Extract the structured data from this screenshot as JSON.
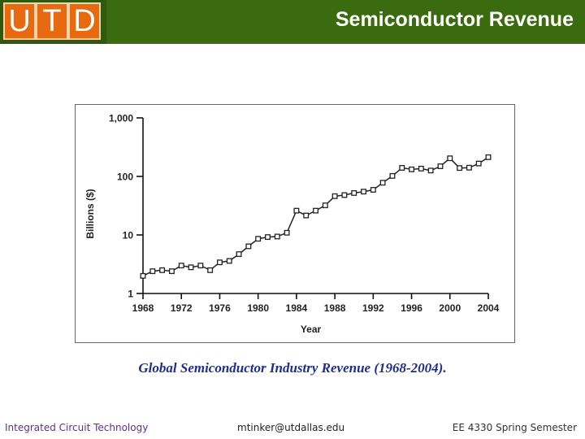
{
  "header": {
    "logo_letters": [
      "U",
      "T",
      "D"
    ],
    "title": "Semiconductor Revenue",
    "colors": {
      "bar": "#3a6b0e",
      "logo": "#e86a10"
    }
  },
  "chart_data": {
    "type": "line",
    "xlabel": "Year",
    "ylabel": "Billions ($)",
    "yscale": "log",
    "ylim": [
      1,
      1000
    ],
    "xlim": [
      1968,
      2004
    ],
    "x_ticks": [
      "1968",
      "1972",
      "1976",
      "1980",
      "1984",
      "1988",
      "1992",
      "1996",
      "2000",
      "2004"
    ],
    "y_ticks": [
      {
        "value": 1,
        "label": "1"
      },
      {
        "value": 10,
        "label": "10"
      },
      {
        "value": 100,
        "label": "100"
      },
      {
        "value": 1000,
        "label": "1,000"
      }
    ],
    "marker": "square",
    "x": [
      1968,
      1969,
      1970,
      1971,
      1972,
      1973,
      1974,
      1975,
      1976,
      1977,
      1978,
      1979,
      1980,
      1981,
      1982,
      1983,
      1984,
      1985,
      1986,
      1987,
      1988,
      1989,
      1990,
      1991,
      1992,
      1993,
      1994,
      1995,
      1996,
      1997,
      1998,
      1999,
      2000,
      2001,
      2002,
      2003,
      2004
    ],
    "y": [
      2.0,
      2.4,
      2.5,
      2.4,
      3.0,
      2.8,
      3.0,
      2.5,
      3.4,
      3.6,
      4.7,
      6.4,
      8.6,
      9.2,
      9.4,
      10.9,
      26,
      21.5,
      26,
      32,
      46,
      48,
      52,
      55,
      59,
      78,
      102,
      140,
      132,
      136,
      126,
      149,
      204,
      139,
      141,
      166,
      213
    ]
  },
  "caption": "Global Semiconductor Industry Revenue (1968-2004).",
  "footer": {
    "left": "Integrated Circuit Technology",
    "center": "mtinker@utdallas.edu",
    "right": "EE 4330 Spring Semester"
  }
}
